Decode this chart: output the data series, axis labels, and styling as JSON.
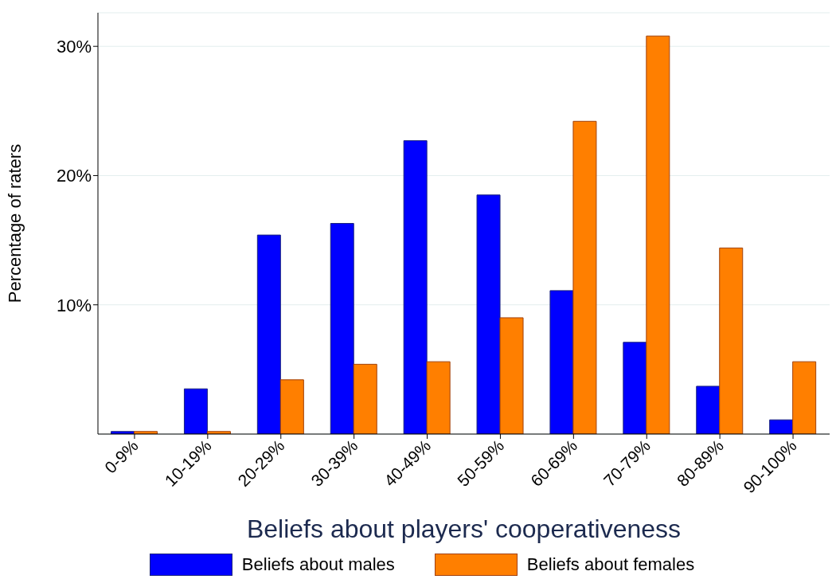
{
  "chart_data": {
    "type": "bar",
    "xlabel": "Beliefs about players' cooperativeness",
    "ylabel": "Percentage of raters",
    "categories": [
      "0-9%",
      "10-19%",
      "20-29%",
      "30-39%",
      "40-49%",
      "50-59%",
      "60-69%",
      "70-79%",
      "80-89%",
      "90-100%"
    ],
    "series": [
      {
        "name": "Beliefs about males",
        "color": "#0000ff",
        "values": [
          0.2,
          3.5,
          15.4,
          16.3,
          22.7,
          18.5,
          11.1,
          7.1,
          3.7,
          1.1
        ]
      },
      {
        "name": "Beliefs about females",
        "color": "#ff7f00",
        "values": [
          0.2,
          0.2,
          4.2,
          5.4,
          5.6,
          9.0,
          24.2,
          30.8,
          14.4,
          5.6
        ]
      }
    ],
    "ylim": [
      0,
      32.6
    ],
    "yticks": [
      {
        "value": 10,
        "label": "10%"
      },
      {
        "value": 20,
        "label": "20%"
      },
      {
        "value": 30,
        "label": "30%"
      }
    ],
    "grid": "y",
    "legend": "bottom"
  }
}
